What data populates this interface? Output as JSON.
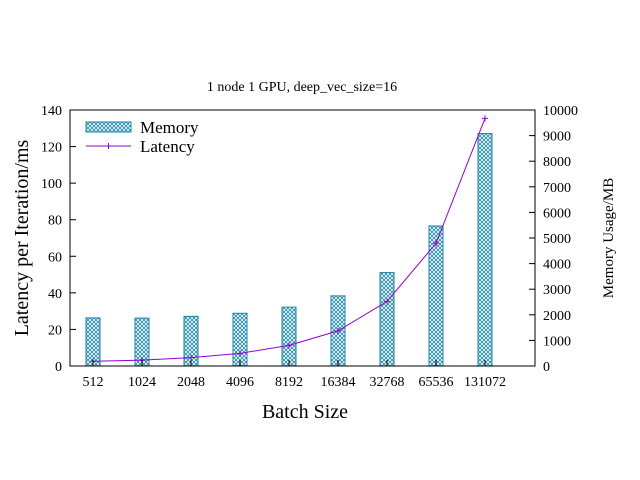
{
  "chart_data": {
    "type": "bar+line",
    "title": "1 node 1 GPU, deep_vec_size=16",
    "xlabel": "Batch Size",
    "ylabel_left": "Latency per Iteration/ms",
    "ylabel_right": "Memory Usage/MB",
    "categories": [
      "512",
      "1024",
      "2048",
      "4096",
      "8192",
      "16384",
      "32768",
      "65536",
      "131072"
    ],
    "ylim_left": [
      0,
      140
    ],
    "ylim_right": [
      0,
      10000
    ],
    "yticks_left": [
      0,
      20,
      40,
      60,
      80,
      100,
      120,
      140
    ],
    "yticks_right": [
      0,
      1000,
      2000,
      3000,
      4000,
      5000,
      6000,
      7000,
      8000,
      9000,
      10000
    ],
    "legend_position": "top-left",
    "grid": false,
    "series": [
      {
        "name": "Memory",
        "type": "bar",
        "axis": "right",
        "color": "#1a86b0",
        "pattern": "crosshatch",
        "values": [
          1880,
          1870,
          1940,
          2060,
          2300,
          2740,
          3650,
          5470,
          9080
        ]
      },
      {
        "name": "Latency",
        "type": "line",
        "axis": "left",
        "color": "#9400d3",
        "marker": "plus",
        "values": [
          2.6,
          3.2,
          4.6,
          6.9,
          11.3,
          19.2,
          35.3,
          67.1,
          135.4
        ]
      }
    ]
  }
}
